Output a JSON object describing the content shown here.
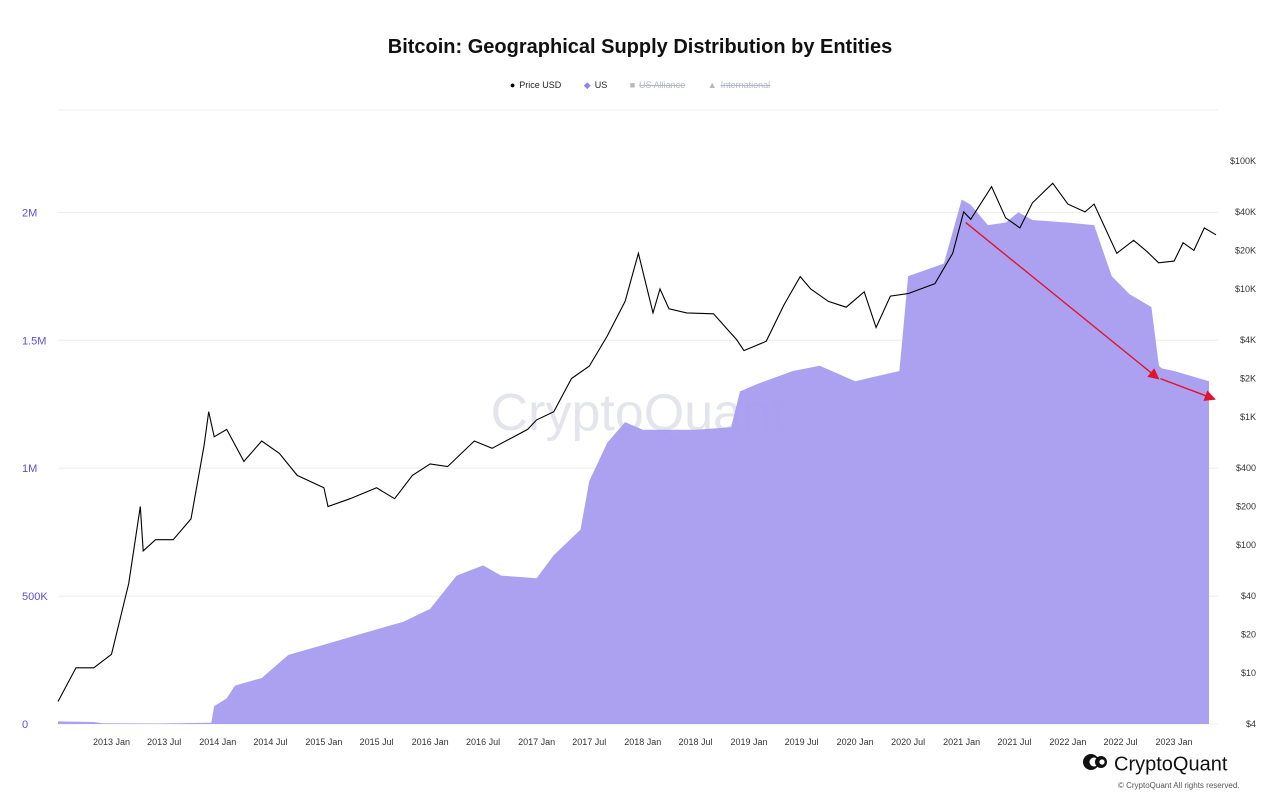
{
  "chart_data": {
    "type": "area",
    "title": "Bitcoin: Geographical Supply Distribution by Entities",
    "legend": [
      {
        "name": "Price USD",
        "symbol": "●",
        "color": "#000000",
        "active": true
      },
      {
        "name": "US",
        "symbol": "◆",
        "color": "#8f83ee",
        "active": true
      },
      {
        "name": "US Alliance",
        "symbol": "■",
        "color": "#b5b5c8",
        "active": false
      },
      {
        "name": "International",
        "symbol": "▲",
        "color": "#b5b5c8",
        "active": false
      }
    ],
    "legend_position": "top-center",
    "x_ticks": [
      "2013 Jan",
      "2013 Jul",
      "2014 Jan",
      "2014 Jul",
      "2015 Jan",
      "2015 Jul",
      "2016 Jan",
      "2016 Jul",
      "2017 Jan",
      "2017 Jul",
      "2018 Jan",
      "2018 Jul",
      "2019 Jan",
      "2019 Jul",
      "2020 Jan",
      "2020 Jul",
      "2021 Jan",
      "2021 Jul",
      "2022 Jan",
      "2022 Jul",
      "2023 Jan"
    ],
    "left_axis": {
      "ticks": [
        0,
        500000,
        1000000,
        1500000,
        2000000
      ],
      "labels": [
        "0",
        "500K",
        "1M",
        "1.5M",
        "2M"
      ],
      "ylim": [
        0,
        2400000
      ]
    },
    "right_axis": {
      "scale": "log",
      "ticks": [
        4,
        10,
        20,
        40,
        100,
        200,
        400,
        1000,
        2000,
        4000,
        10000,
        20000,
        40000,
        100000
      ],
      "labels": [
        "$4",
        "$10",
        "$20",
        "$40",
        "$100",
        "$200",
        "$400",
        "$1K",
        "$2K",
        "$4K",
        "$10K",
        "$20K",
        "$40K",
        "$100K"
      ]
    },
    "grid": true,
    "series": [
      {
        "name": "US",
        "axis": "left",
        "color": "#a397f0",
        "points": [
          [
            "2012-07-01",
            10000
          ],
          [
            "2012-11-01",
            8000
          ],
          [
            "2012-12-01",
            3000
          ],
          [
            "2013-06-01",
            2000
          ],
          [
            "2013-12-10",
            5000
          ],
          [
            "2013-12-20",
            70000
          ],
          [
            "2014-02-01",
            100000
          ],
          [
            "2014-03-01",
            150000
          ],
          [
            "2014-06-01",
            180000
          ],
          [
            "2014-09-01",
            270000
          ],
          [
            "2015-01-01",
            310000
          ],
          [
            "2015-06-01",
            360000
          ],
          [
            "2015-10-01",
            400000
          ],
          [
            "2016-01-01",
            450000
          ],
          [
            "2016-04-01",
            580000
          ],
          [
            "2016-07-01",
            620000
          ],
          [
            "2016-09-01",
            580000
          ],
          [
            "2017-01-01",
            570000
          ],
          [
            "2017-03-01",
            660000
          ],
          [
            "2017-06-01",
            760000
          ],
          [
            "2017-07-01",
            950000
          ],
          [
            "2017-09-01",
            1100000
          ],
          [
            "2017-11-01",
            1180000
          ],
          [
            "2018-01-01",
            1150000
          ],
          [
            "2018-07-01",
            1150000
          ],
          [
            "2018-11-01",
            1160000
          ],
          [
            "2018-12-01",
            1300000
          ],
          [
            "2019-02-01",
            1330000
          ],
          [
            "2019-06-01",
            1380000
          ],
          [
            "2019-09-01",
            1400000
          ],
          [
            "2020-01-01",
            1340000
          ],
          [
            "2020-06-01",
            1380000
          ],
          [
            "2020-07-01",
            1750000
          ],
          [
            "2020-11-01",
            1800000
          ],
          [
            "2021-01-01",
            2050000
          ],
          [
            "2021-02-01",
            2030000
          ],
          [
            "2021-04-01",
            1950000
          ],
          [
            "2021-06-01",
            1960000
          ],
          [
            "2021-07-15",
            2000000
          ],
          [
            "2021-09-01",
            1970000
          ],
          [
            "2022-01-01",
            1960000
          ],
          [
            "2022-04-01",
            1950000
          ],
          [
            "2022-06-01",
            1750000
          ],
          [
            "2022-08-01",
            1680000
          ],
          [
            "2022-10-15",
            1630000
          ],
          [
            "2022-11-10",
            1400000
          ],
          [
            "2022-11-20",
            1390000
          ],
          [
            "2023-01-01",
            1380000
          ],
          [
            "2023-05-01",
            1340000
          ]
        ]
      },
      {
        "name": "Price USD",
        "axis": "right",
        "color": "#000000",
        "points": [
          [
            "2012-07-01",
            6
          ],
          [
            "2012-09-01",
            11
          ],
          [
            "2012-11-01",
            11
          ],
          [
            "2013-01-01",
            14
          ],
          [
            "2013-03-01",
            50
          ],
          [
            "2013-04-10",
            200
          ],
          [
            "2013-04-20",
            90
          ],
          [
            "2013-06-01",
            110
          ],
          [
            "2013-08-01",
            110
          ],
          [
            "2013-10-01",
            160
          ],
          [
            "2013-11-15",
            600
          ],
          [
            "2013-12-01",
            1100
          ],
          [
            "2013-12-20",
            700
          ],
          [
            "2014-02-01",
            800
          ],
          [
            "2014-04-01",
            450
          ],
          [
            "2014-06-01",
            650
          ],
          [
            "2014-08-01",
            520
          ],
          [
            "2014-10-01",
            350
          ],
          [
            "2015-01-01",
            280
          ],
          [
            "2015-01-15",
            200
          ],
          [
            "2015-04-01",
            230
          ],
          [
            "2015-07-01",
            280
          ],
          [
            "2015-09-01",
            230
          ],
          [
            "2015-11-01",
            350
          ],
          [
            "2016-01-01",
            430
          ],
          [
            "2016-03-01",
            410
          ],
          [
            "2016-06-01",
            650
          ],
          [
            "2016-08-01",
            570
          ],
          [
            "2016-12-01",
            800
          ],
          [
            "2017-01-01",
            950
          ],
          [
            "2017-03-01",
            1100
          ],
          [
            "2017-05-01",
            2000
          ],
          [
            "2017-07-01",
            2500
          ],
          [
            "2017-09-01",
            4300
          ],
          [
            "2017-11-01",
            8000
          ],
          [
            "2017-12-17",
            19000
          ],
          [
            "2018-02-05",
            6500
          ],
          [
            "2018-03-01",
            10000
          ],
          [
            "2018-04-01",
            7000
          ],
          [
            "2018-06-01",
            6500
          ],
          [
            "2018-09-01",
            6400
          ],
          [
            "2018-11-20",
            4000
          ],
          [
            "2018-12-15",
            3300
          ],
          [
            "2019-03-01",
            3900
          ],
          [
            "2019-05-01",
            7500
          ],
          [
            "2019-06-26",
            12500
          ],
          [
            "2019-08-01",
            10000
          ],
          [
            "2019-10-01",
            8000
          ],
          [
            "2019-12-01",
            7200
          ],
          [
            "2020-02-01",
            9500
          ],
          [
            "2020-03-13",
            5000
          ],
          [
            "2020-05-01",
            8800
          ],
          [
            "2020-07-01",
            9200
          ],
          [
            "2020-10-01",
            11000
          ],
          [
            "2020-12-01",
            19000
          ],
          [
            "2021-01-08",
            40000
          ],
          [
            "2021-02-01",
            35000
          ],
          [
            "2021-04-14",
            63000
          ],
          [
            "2021-06-01",
            36000
          ],
          [
            "2021-07-20",
            30000
          ],
          [
            "2021-09-01",
            47000
          ],
          [
            "2021-11-10",
            67000
          ],
          [
            "2022-01-01",
            46000
          ],
          [
            "2022-03-01",
            40000
          ],
          [
            "2022-04-01",
            46000
          ],
          [
            "2022-06-18",
            19000
          ],
          [
            "2022-08-15",
            24000
          ],
          [
            "2022-10-01",
            19500
          ],
          [
            "2022-11-09",
            16000
          ],
          [
            "2023-01-01",
            16500
          ],
          [
            "2023-02-01",
            23000
          ],
          [
            "2023-03-10",
            20000
          ],
          [
            "2023-04-15",
            30000
          ],
          [
            "2023-05-25",
            26500
          ]
        ]
      }
    ],
    "annotations": [
      {
        "type": "arrow",
        "color": "#e0142b",
        "from": [
          "2021-01-15",
          1960000
        ],
        "to": [
          "2022-11-08",
          1350000
        ]
      },
      {
        "type": "arrow",
        "color": "#e0142b",
        "from": [
          "2022-11-15",
          1350000
        ],
        "to": [
          "2023-05-20",
          1270000
        ]
      }
    ],
    "watermark": "CryptoQuant"
  },
  "brand": {
    "name": "CryptoQuant",
    "copyright": "© CryptoQuant All rights reserved."
  }
}
